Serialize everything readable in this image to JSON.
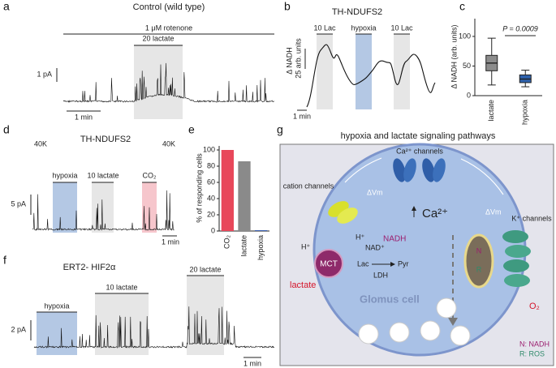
{
  "panels": {
    "a": {
      "label": "a",
      "title": "Control (wild type)",
      "treatment": "1 μM rotenone",
      "stimulus": "20 lactate",
      "scale_y": "1 pA",
      "scale_x": "1 min"
    },
    "b": {
      "label": "b",
      "title": "TH-NDUFS2",
      "stimuli": [
        "10 Lac",
        "hypoxia",
        "10 Lac"
      ],
      "y_label": "Δ NADH",
      "scale_y": "25 arb. units",
      "scale_x": "1 min"
    },
    "d": {
      "label": "d",
      "title": "TH-NDUFS2",
      "depolarization": [
        "40K",
        "40K"
      ],
      "stimuli": [
        "hypoxia",
        "10 lactate",
        "CO₂"
      ],
      "scale_y": "5 pA",
      "scale_x": "1 min"
    },
    "f": {
      "label": "f",
      "title": "ERT2- HIF2α",
      "stimuli": [
        "hypoxia",
        "10 lactate",
        "20 lactate"
      ],
      "scale_y": "2 pA",
      "scale_x": "1 min"
    },
    "g": {
      "label": "g",
      "title": "hypoxia and lactate signaling pathways",
      "ca_channels": "Ca²⁺ channels",
      "cation_channels": "cation channels",
      "vm_left": "ΔVm",
      "vm_right": "ΔVm",
      "calcium": "Ca²⁺",
      "k_channels": "K⁺ channels",
      "h_out": "H⁺",
      "h_in": "H⁺",
      "nad": "NAD⁺",
      "nadh": "NADH",
      "mct": "MCT",
      "lac": "Lac",
      "pyr": "Pyr",
      "ldh": "LDH",
      "lactate": "lactate",
      "cell": "Glomus cell",
      "n": "N",
      "r": "R",
      "o2": "O₂",
      "legend_n": "N: NADH",
      "legend_r": "R: ROS"
    }
  },
  "chart_data": [
    {
      "type": "box",
      "panel_label": "c",
      "y_label": "Δ NADH (arb. units)",
      "annotation": "P = 0.0009",
      "categories": [
        "lactate",
        "hypoxia"
      ],
      "ylim": [
        0,
        130
      ],
      "yticks": [
        0,
        50,
        100
      ],
      "boxes": [
        {
          "min": 18,
          "q1": 42,
          "median": 55,
          "q3": 68,
          "max": 97,
          "color": "#8c8c8c"
        },
        {
          "min": 15,
          "q1": 22,
          "median": 28,
          "q3": 35,
          "max": 43,
          "color": "#2f62ad"
        }
      ]
    },
    {
      "type": "bar",
      "panel_label": "e",
      "y_label": "% of responding cells",
      "categories": [
        "CO₂",
        "lactate",
        "hypoxia"
      ],
      "values": [
        100,
        86,
        1
      ],
      "colors": [
        "#e8475a",
        "#8a8a8a",
        "#3a5fb0"
      ],
      "ylim": [
        0,
        105
      ],
      "yticks": [
        0,
        20,
        40,
        60,
        80,
        100
      ]
    }
  ]
}
